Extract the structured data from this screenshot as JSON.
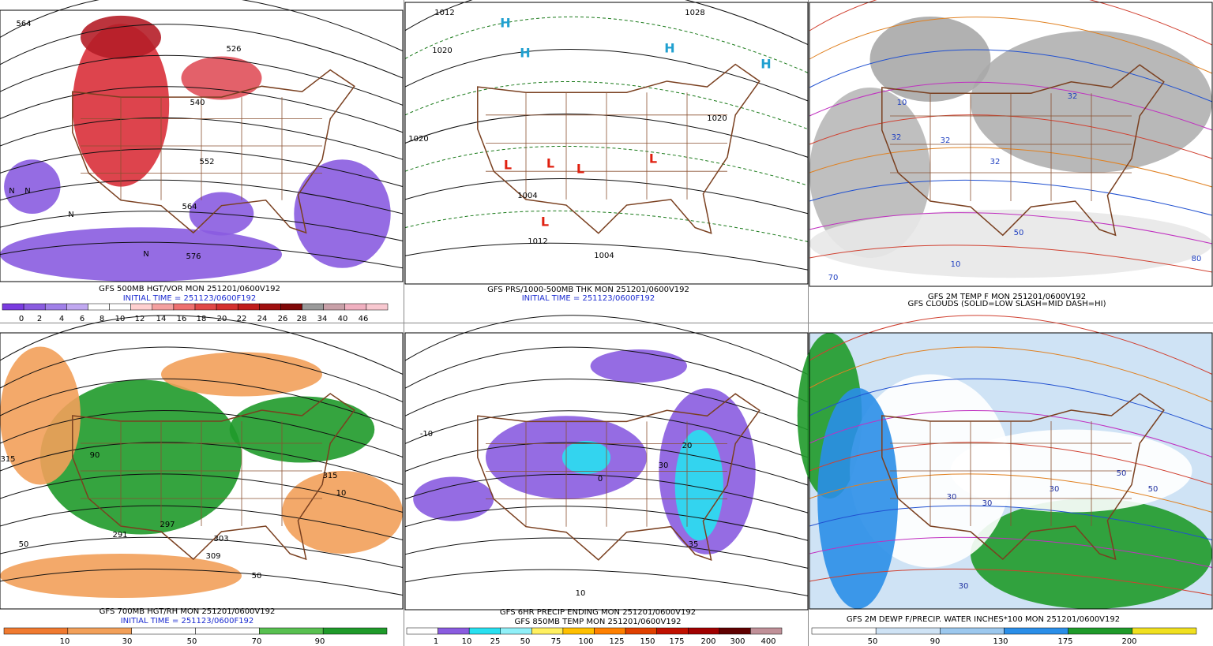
{
  "panels": [
    {
      "caption": [
        "GFS 500MB HGT/VOR MON 251201/0600V192",
        "INITIAL TIME = 251123/0600F192"
      ],
      "colorbar": [
        0,
        2,
        4,
        6,
        8,
        10,
        12,
        14,
        16,
        18,
        20,
        22,
        24,
        26,
        28,
        34,
        40,
        46
      ],
      "labels": [
        "564",
        "526",
        "540",
        "552",
        "564",
        "576",
        "N",
        "N",
        "N",
        "N"
      ]
    },
    {
      "caption": [
        "GFS PRS/1000-500MB THK MON 251201/0600V192",
        "INITIAL TIME = 251123/0600F192"
      ],
      "labels": [
        "1012",
        "1020",
        "1028",
        "1020",
        "1020",
        "1004",
        "1012",
        "1004",
        "H",
        "H",
        "H",
        "H",
        "L",
        "L",
        "L",
        "L",
        "L"
      ]
    },
    {
      "caption": [
        "GFS 2M TEMP F MON 251201/0600V192",
        "GFS CLOUDS (SOLID=LOW SLASH=MID DASH=HI)"
      ],
      "labels": [
        "32",
        "32",
        "32",
        "32",
        "10",
        "10",
        "50",
        "80",
        "70"
      ]
    },
    {
      "caption": [
        "GFS 700MB HGT/RH MON 251201/0600V192",
        "INITIAL TIME = 251123/0600F192"
      ],
      "colorbar": [
        10,
        30,
        50,
        70,
        90
      ],
      "labels": [
        "315",
        "291",
        "297",
        "303",
        "309",
        "315",
        "50",
        "50",
        "90",
        "10"
      ]
    },
    {
      "caption": [
        "GFS 6HR PRECIP ENDING MON 251201/0600V192",
        "GFS 850MB TEMP MON 251201/0600V192"
      ],
      "colorbar": [
        1,
        10,
        25,
        50,
        75,
        100,
        125,
        150,
        175,
        200,
        300,
        400
      ],
      "labels": [
        "0",
        "-10",
        "10",
        "20",
        "30",
        "35"
      ]
    },
    {
      "caption": [
        "GFS 2M DEWP F/PRECIP. WATER INCHES*100 MON 251201/0600V192"
      ],
      "colorbar": [
        50,
        90,
        130,
        175,
        200
      ],
      "labels": [
        "30",
        "30",
        "30",
        "50",
        "50",
        "30"
      ]
    }
  ]
}
